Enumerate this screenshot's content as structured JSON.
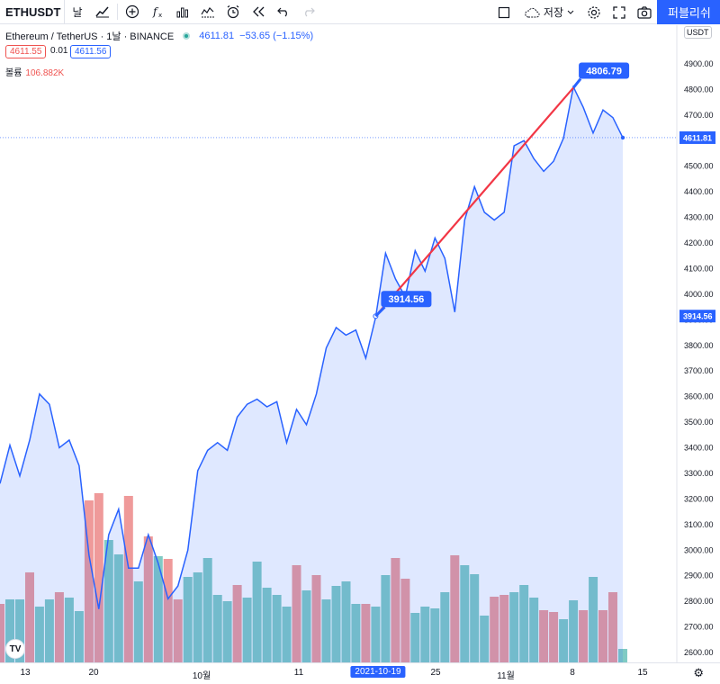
{
  "toolbar": {
    "symbol": "ETHUSDT",
    "interval_icon": "날",
    "save_label": "저장",
    "publish_label": "퍼블리쉬"
  },
  "legend": {
    "title": "Ethereum / TetherUS · 1날 · BINANCE",
    "last": "4611.81",
    "change": "−53.65 (−1.15%)",
    "bid": "4611.55",
    "spread": "0.01",
    "ask": "4611.56"
  },
  "volume": {
    "label": "볼륨",
    "value": "106.882K"
  },
  "scale": {
    "currency": "USDT",
    "labels": [
      "4900.00",
      "4800.00",
      "4700.00",
      "4600.00",
      "4500.00",
      "4400.00",
      "4300.00",
      "4200.00",
      "4100.00",
      "4000.00",
      "3900.00",
      "3800.00",
      "3700.00",
      "3600.00",
      "3500.00",
      "3400.00",
      "3300.00",
      "3200.00",
      "3100.00",
      "3000.00",
      "2900.00",
      "2800.00",
      "2700.00",
      "2600.00"
    ],
    "current_price": "4611.81",
    "marker_price": "3914.56"
  },
  "timeaxis": {
    "ticks": [
      "13",
      "20",
      "10월",
      "11",
      "2021-10-19",
      "25",
      "11월",
      "8",
      "15"
    ]
  },
  "colors": {
    "line": "#2962ff",
    "up_vol": "#80cbc4",
    "down_vol": "#ef9a9a",
    "trend": "#f23645",
    "accent": "#2962ff"
  },
  "chart_data": {
    "type": "area",
    "price": [
      3260,
      3410,
      3290,
      3430,
      3610,
      3570,
      3400,
      3430,
      3330,
      2980,
      2770,
      3060,
      3160,
      2930,
      2930,
      3060,
      2950,
      2810,
      2860,
      3000,
      3310,
      3390,
      3420,
      3390,
      3520,
      3570,
      3590,
      3560,
      3580,
      3420,
      3550,
      3490,
      3610,
      3790,
      3870,
      3840,
      3860,
      3750,
      3910,
      4160,
      4060,
      3990,
      4170,
      4090,
      4220,
      4140,
      3930,
      4290,
      4420,
      4320,
      4290,
      4320,
      4580,
      4600,
      4530,
      4480,
      4520,
      4610,
      4810,
      4730,
      4630,
      4720,
      4690,
      4612
    ],
    "volume_dir": [
      "d",
      "u",
      "u",
      "d",
      "u",
      "u",
      "d",
      "u",
      "u",
      "d",
      "d",
      "u",
      "u",
      "d",
      "u",
      "d",
      "u",
      "d",
      "d",
      "u",
      "u",
      "u",
      "u",
      "u",
      "d",
      "u",
      "u",
      "u",
      "u",
      "u",
      "d",
      "u",
      "d",
      "u",
      "u",
      "u",
      "u",
      "d",
      "u",
      "u",
      "d",
      "d",
      "u",
      "u",
      "u",
      "u",
      "d",
      "u",
      "u",
      "u",
      "d",
      "d",
      "u",
      "u",
      "u",
      "d",
      "d",
      "u",
      "u",
      "d",
      "u",
      "d",
      "d",
      "u"
    ],
    "volume": [
      0.65,
      0.7,
      0.7,
      1.0,
      0.62,
      0.7,
      0.78,
      0.72,
      0.57,
      1.8,
      1.88,
      1.36,
      1.2,
      1.85,
      0.9,
      1.4,
      1.18,
      1.15,
      0.7,
      0.95,
      1.0,
      1.16,
      0.75,
      0.68,
      0.86,
      0.72,
      1.12,
      0.83,
      0.75,
      0.62,
      1.08,
      0.8,
      0.97,
      0.7,
      0.85,
      0.9,
      0.65,
      0.65,
      0.62,
      0.97,
      1.16,
      0.93,
      0.55,
      0.62,
      0.6,
      0.78,
      1.19,
      1.08,
      0.98,
      0.52,
      0.73,
      0.75,
      0.78,
      0.86,
      0.72,
      0.58,
      0.56,
      0.48,
      0.69,
      0.58,
      0.95,
      0.58,
      0.78,
      0.15
    ],
    "trendline": {
      "start": 3914.56,
      "end": 4806.79
    },
    "ylim": [
      2560,
      5010
    ],
    "xlabel": "",
    "ylabel": ""
  }
}
